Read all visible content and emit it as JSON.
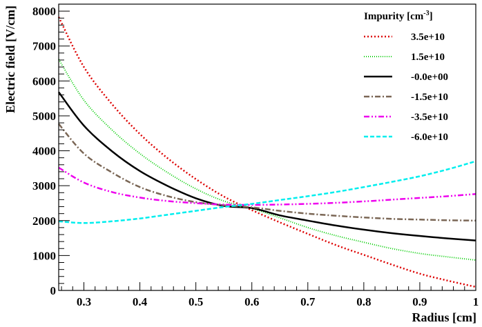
{
  "chart_data": {
    "type": "line",
    "title": "",
    "xlabel": "Radius [cm]",
    "ylabel": "Electric field [V/cm]",
    "xlim": [
      0.255,
      1.0
    ],
    "ylim": [
      0,
      8200
    ],
    "x_ticks": [
      0.3,
      0.4,
      0.5,
      0.6,
      0.7,
      0.8,
      0.9,
      1.0
    ],
    "x_tick_labels": [
      "0.3",
      "0.4",
      "0.5",
      "0.6",
      "0.7",
      "0.8",
      "0.9",
      "1"
    ],
    "y_ticks": [
      0,
      1000,
      2000,
      3000,
      4000,
      5000,
      6000,
      7000,
      8000
    ],
    "y_tick_labels": [
      "0",
      "1000",
      "2000",
      "3000",
      "4000",
      "5000",
      "6000",
      "7000",
      "8000"
    ],
    "grid": false,
    "legend": {
      "title_main": "Impurity [cm",
      "title_sup": "-3",
      "title_end": "]",
      "placement": "top-right"
    },
    "x": [
      0.255,
      0.3,
      0.35,
      0.4,
      0.45,
      0.5,
      0.55,
      0.6,
      0.65,
      0.7,
      0.75,
      0.8,
      0.85,
      0.9,
      0.95,
      1.0
    ],
    "series": [
      {
        "name": "3.5e+10",
        "color": "#dd0000",
        "dash": "2,3",
        "width": 2.5,
        "values": [
          7830,
          6400,
          5340,
          4480,
          3780,
          3190,
          2690,
          2300,
          1950,
          1620,
          1300,
          1020,
          740,
          480,
          280,
          100
        ]
      },
      {
        "name": "1.5e+10",
        "color": "#00cc00",
        "dash": "1,2",
        "width": 2,
        "values": [
          6620,
          5450,
          4600,
          3920,
          3370,
          2910,
          2560,
          2350,
          2080,
          1800,
          1570,
          1380,
          1200,
          1060,
          960,
          870
        ]
      },
      {
        "name": "-0.0e+00",
        "color": "#000000",
        "dash": "",
        "width": 2.5,
        "values": [
          5680,
          4720,
          3990,
          3420,
          2990,
          2640,
          2420,
          2360,
          2150,
          2000,
          1860,
          1740,
          1640,
          1560,
          1490,
          1430
        ]
      },
      {
        "name": "-1.5e+10",
        "color": "#7a6655",
        "dash": "8,3,2,3",
        "width": 2.5,
        "values": [
          4770,
          3920,
          3380,
          2960,
          2700,
          2530,
          2440,
          2380,
          2280,
          2200,
          2140,
          2090,
          2050,
          2030,
          2010,
          2000
        ]
      },
      {
        "name": "-3.5e+10",
        "color": "#ee00ee",
        "dash": "8,3,2,3,2,3",
        "width": 2.5,
        "values": [
          3520,
          3090,
          2820,
          2660,
          2560,
          2500,
          2460,
          2450,
          2460,
          2480,
          2510,
          2550,
          2600,
          2650,
          2700,
          2760
        ]
      },
      {
        "name": "-6.0e+10",
        "color": "#00eeee",
        "dash": "6,3",
        "width": 2.5,
        "values": [
          1980,
          1930,
          1980,
          2060,
          2170,
          2280,
          2390,
          2480,
          2590,
          2700,
          2820,
          2960,
          3110,
          3270,
          3470,
          3700
        ]
      }
    ]
  }
}
